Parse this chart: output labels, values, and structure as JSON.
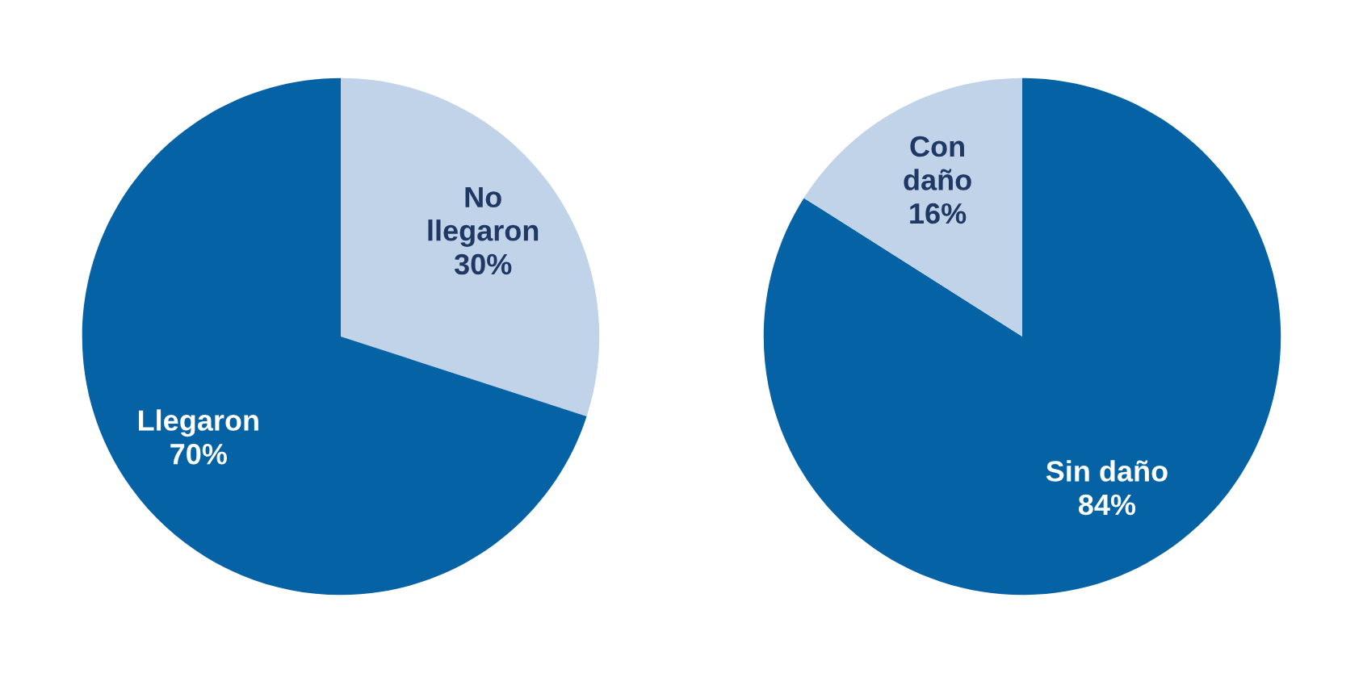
{
  "chart_data": [
    {
      "type": "pie",
      "categories": [
        "No\nllegaron",
        "Llegaron"
      ],
      "values": [
        30,
        70
      ],
      "colors": [
        "#c0d3e8",
        "#0563a5"
      ],
      "value_labels": [
        "30%",
        "70%"
      ]
    },
    {
      "type": "pie",
      "categories": [
        "Sin daño",
        "Con\ndaño"
      ],
      "values": [
        84,
        16
      ],
      "colors": [
        "#0563a5",
        "#c0d3e8"
      ],
      "value_labels": [
        "84%",
        "16%"
      ]
    }
  ]
}
